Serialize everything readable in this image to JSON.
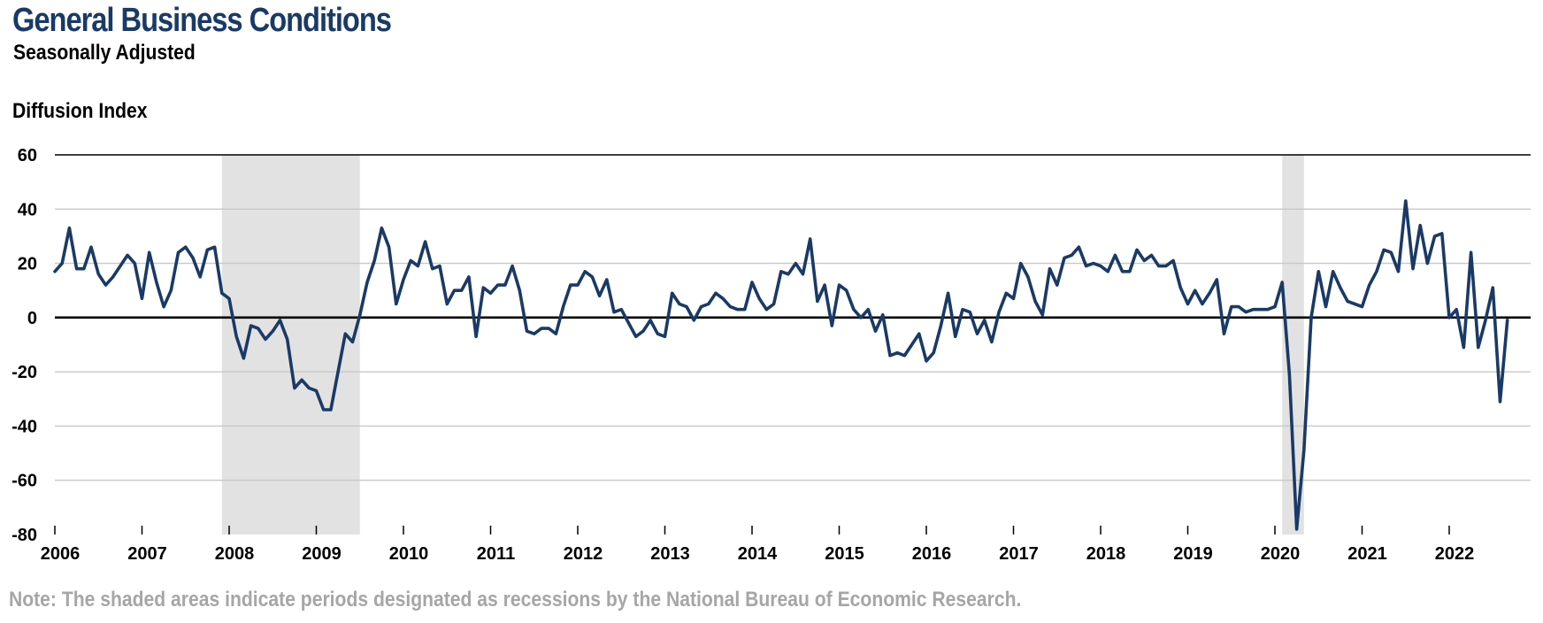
{
  "header": {
    "title": "General Business Conditions",
    "subtitle": "Seasonally Adjusted",
    "ylabel": "Diffusion Index"
  },
  "footer": {
    "note": "Note: The shaded areas indicate periods designated as recessions by the National Bureau of Economic Research."
  },
  "chart_data": {
    "type": "line",
    "title": "General Business Conditions",
    "subtitle": "Seasonally Adjusted",
    "ylabel": "Diffusion Index",
    "xlabel": "",
    "ylim": [
      -80,
      60
    ],
    "yticks": [
      60,
      40,
      20,
      0,
      -20,
      -40,
      -60,
      -80
    ],
    "xlim": [
      "2006-01",
      "2022-12"
    ],
    "xticks": [
      "2006",
      "2007",
      "2008",
      "2009",
      "2010",
      "2011",
      "2012",
      "2013",
      "2014",
      "2015",
      "2016",
      "2017",
      "2018",
      "2019",
      "2020",
      "2021",
      "2022"
    ],
    "grid": true,
    "legend": "none",
    "colors": {
      "line": "#1a3a66",
      "recession": "#e2e2e2",
      "grid": "#c8c8c8",
      "zero": "#000000"
    },
    "recessions": [
      {
        "start": "2007-12",
        "end": "2009-06"
      },
      {
        "start": "2020-02",
        "end": "2020-04"
      }
    ],
    "series": [
      {
        "start": "2006-01",
        "frequency": "monthly",
        "values": [
          17,
          20,
          33,
          18,
          18,
          26,
          16,
          12,
          15,
          19,
          23,
          20,
          7,
          24,
          13,
          4,
          10,
          24,
          26,
          22,
          15,
          25,
          26,
          9,
          7,
          -7,
          -15,
          -3,
          -4,
          -8,
          -5,
          -1,
          -8,
          -26,
          -23,
          -26,
          -27,
          -34,
          -34,
          -20,
          -6,
          -9,
          1,
          13,
          21,
          33,
          26,
          5,
          14,
          21,
          19,
          28,
          18,
          19,
          5,
          10,
          10,
          15,
          -7,
          11,
          9,
          12,
          12,
          19,
          10,
          -5,
          -6,
          -4,
          -4,
          -6,
          4,
          12,
          12,
          17,
          15,
          8,
          14,
          2,
          3,
          -2,
          -7,
          -5,
          -1,
          -6,
          -7,
          9,
          5,
          4,
          -1,
          4,
          5,
          9,
          7,
          4,
          3,
          3,
          13,
          7,
          3,
          5,
          17,
          16,
          20,
          16,
          29,
          6,
          12,
          -3,
          12,
          10,
          3,
          0,
          3,
          -5,
          1,
          -14,
          -13,
          -14,
          -10,
          -6,
          -16,
          -13,
          -3,
          9,
          -7,
          3,
          2,
          -6,
          -1,
          -9,
          2,
          9,
          7,
          20,
          15,
          6,
          1,
          18,
          12,
          22,
          23,
          26,
          19,
          20,
          19,
          17,
          23,
          17,
          17,
          25,
          21,
          23,
          19,
          19,
          21,
          11,
          5,
          10,
          5,
          9,
          14,
          -6,
          4,
          4,
          2,
          3,
          3,
          3,
          4,
          13,
          -21,
          -78,
          -49,
          0,
          17,
          4,
          17,
          11,
          6,
          5,
          4,
          12,
          17,
          25,
          24,
          17,
          43,
          18,
          34,
          20,
          30,
          31,
          0,
          3,
          -11,
          24,
          -11,
          -1,
          11,
          -31,
          -1
        ]
      }
    ]
  }
}
